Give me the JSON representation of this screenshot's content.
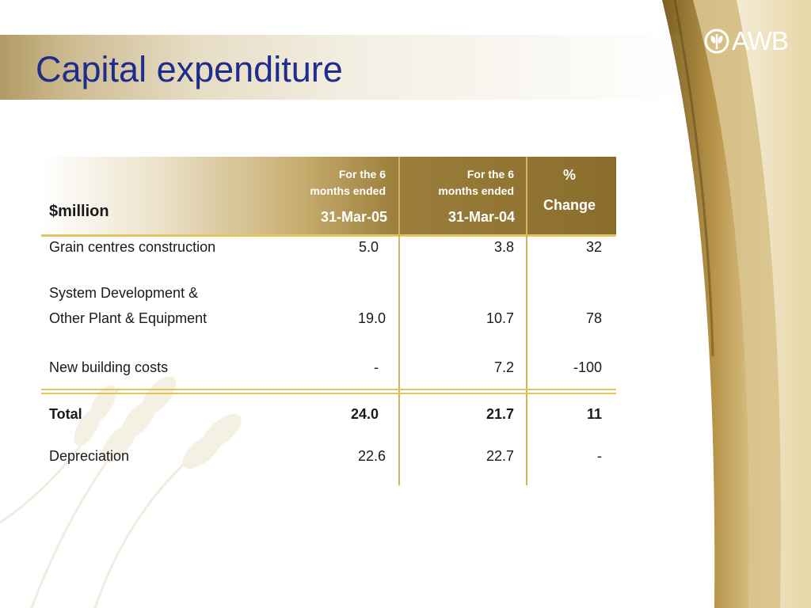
{
  "slide": {
    "title": "Capital expenditure",
    "logo": "AWB"
  },
  "table": {
    "unit_label": "$million",
    "columns": [
      {
        "line1": "For the 6",
        "line2": "months ended",
        "date": "31-Mar-05"
      },
      {
        "line1": "For the 6",
        "line2": "months ended",
        "date": "31-Mar-04"
      },
      {
        "line1": "%",
        "line2": "Change"
      }
    ],
    "rows": [
      {
        "label": "Grain centres construction",
        "c1": "5.0",
        "c2": "3.8",
        "c3": "32"
      },
      {
        "label_line1": "System Development &",
        "label": "Other Plant & Equipment",
        "c1": "19.0",
        "c2": "10.7",
        "c3": "78"
      },
      {
        "label": "New building costs",
        "c1": "-",
        "c2": "7.2",
        "c3": "-100"
      },
      {
        "label": "Total",
        "c1": "24.0",
        "c2": "21.7",
        "c3": "11"
      },
      {
        "label": "Depreciation",
        "c1": "22.6",
        "c2": "22.7",
        "c3": "-"
      }
    ]
  },
  "colors": {
    "title": "#1e2d8c",
    "header_gold": "#8a6d2c",
    "rule_gold": "#e3c45d"
  }
}
